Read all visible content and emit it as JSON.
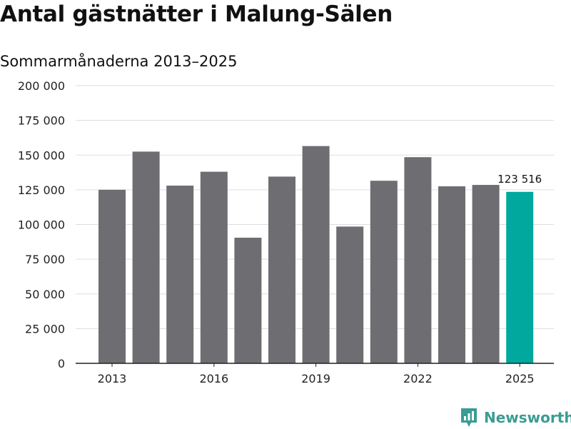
{
  "title": "Antal gästnätter i Malung-Sälen",
  "subtitle": "Sommarmånaderna 2013–2025",
  "brand": {
    "name": "Newsworthy",
    "icon": "newsworthy-logo-icon"
  },
  "colors": {
    "bar": "#6e6d72",
    "highlight": "#00a89d",
    "grid": "#dddddd",
    "axis": "#222222"
  },
  "chart_data": {
    "type": "bar",
    "categories": [
      "2013",
      "2014",
      "2015",
      "2016",
      "2017",
      "2018",
      "2019",
      "2020",
      "2021",
      "2022",
      "2023",
      "2024",
      "2025"
    ],
    "x_tick_labels": [
      "2013",
      "2016",
      "2019",
      "2022",
      "2025"
    ],
    "values": [
      125000,
      152500,
      128000,
      138000,
      90500,
      134500,
      156500,
      98500,
      131500,
      148500,
      127500,
      128500,
      123516
    ],
    "ylim": [
      0,
      200000
    ],
    "y_ticks": [
      0,
      25000,
      50000,
      75000,
      100000,
      125000,
      150000,
      175000,
      200000
    ],
    "y_tick_labels": [
      "0",
      "25 000",
      "50 000",
      "75 000",
      "100 000",
      "125 000",
      "150 000",
      "175 000",
      "200 000"
    ],
    "highlight_category": "2025",
    "data_labels": [
      {
        "category": "2025",
        "text": "123 516"
      }
    ],
    "grid": true,
    "legend": "none"
  }
}
